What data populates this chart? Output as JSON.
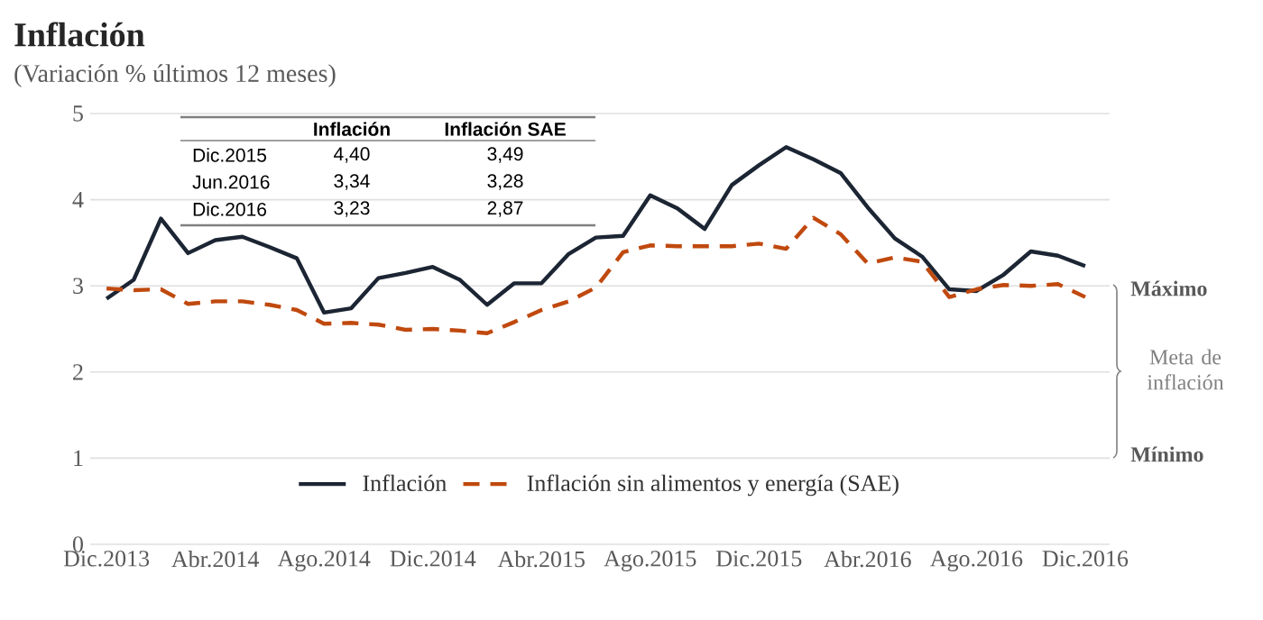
{
  "chart_data": {
    "type": "line",
    "title": "Inflación",
    "subtitle": "(Variación % últimos 12 meses)",
    "categories": [
      "Dic.2013",
      null,
      null,
      null,
      "Abr.2014",
      null,
      null,
      null,
      "Ago.2014",
      null,
      null,
      null,
      "Dic.2014",
      null,
      null,
      null,
      "Abr.2015",
      null,
      null,
      null,
      "Ago.2015",
      null,
      null,
      null,
      "Dic.2015",
      null,
      null,
      null,
      "Abr.2016",
      null,
      null,
      null,
      "Ago.2016",
      null,
      null,
      null,
      "Dic.2016"
    ],
    "series": [
      {
        "name": "Inflación",
        "color": "#1c2533",
        "line_style": "solid",
        "values": [
          2.85,
          3.07,
          3.78,
          3.38,
          3.53,
          3.57,
          3.45,
          3.32,
          2.69,
          2.74,
          3.09,
          3.15,
          3.22,
          3.07,
          2.78,
          3.03,
          3.03,
          3.37,
          3.56,
          3.58,
          4.05,
          3.9,
          3.66,
          4.17,
          4.4,
          4.61,
          4.47,
          4.31,
          3.91,
          3.55,
          3.34,
          2.96,
          2.94,
          3.13,
          3.4,
          3.35,
          3.23
        ]
      },
      {
        "name": "Inflación sin alimentos y energía (SAE)",
        "color": "#c0490e",
        "line_style": "dashed",
        "values": [
          2.97,
          2.95,
          2.96,
          2.79,
          2.82,
          2.82,
          2.78,
          2.72,
          2.56,
          2.57,
          2.55,
          2.49,
          2.5,
          2.48,
          2.45,
          2.58,
          2.72,
          2.82,
          2.98,
          3.39,
          3.47,
          3.46,
          3.46,
          3.46,
          3.49,
          3.43,
          3.79,
          3.6,
          3.26,
          3.33,
          3.28,
          2.87,
          2.96,
          3.01,
          3.0,
          3.02,
          2.87
        ]
      }
    ],
    "ylim": [
      0,
      5
    ],
    "yticks": [
      0,
      1,
      2,
      3,
      4,
      5
    ],
    "grid": "y",
    "legend": "bottom",
    "marker": "none",
    "annotations": [
      "Máximo",
      "Meta de inflación",
      "Mínimo",
      "Inflación",
      "Inflación SAE",
      "Dic.2015",
      "4,40",
      "3,49",
      "Jun.2016",
      "3,34",
      "3,28",
      "Dic.2016",
      "3,23",
      "2,87"
    ]
  }
}
